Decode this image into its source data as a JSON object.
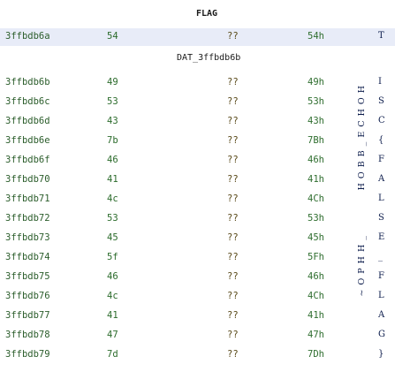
{
  "labels": {
    "flag": "FLAG",
    "dat": "DAT_3ffbdb6b"
  },
  "flag_row": {
    "addr": "3ffbdb6a",
    "byte": "54",
    "undef": "??",
    "hex": "54h",
    "char": "T"
  },
  "rows": [
    {
      "addr": "3ffbdb6b",
      "byte": "49",
      "undef": "??",
      "hex": "49h",
      "char": "I"
    },
    {
      "addr": "3ffbdb6c",
      "byte": "53",
      "undef": "??",
      "hex": "53h",
      "char": "S"
    },
    {
      "addr": "3ffbdb6d",
      "byte": "43",
      "undef": "??",
      "hex": "43h",
      "char": "C"
    },
    {
      "addr": "3ffbdb6e",
      "byte": "7b",
      "undef": "??",
      "hex": "7Bh",
      "char": "{"
    },
    {
      "addr": "3ffbdb6f",
      "byte": "46",
      "undef": "??",
      "hex": "46h",
      "char": "F"
    },
    {
      "addr": "3ffbdb70",
      "byte": "41",
      "undef": "??",
      "hex": "41h",
      "char": "A"
    },
    {
      "addr": "3ffbdb71",
      "byte": "4c",
      "undef": "??",
      "hex": "4Ch",
      "char": "L"
    },
    {
      "addr": "3ffbdb72",
      "byte": "53",
      "undef": "??",
      "hex": "53h",
      "char": "S"
    },
    {
      "addr": "3ffbdb73",
      "byte": "45",
      "undef": "??",
      "hex": "45h",
      "char": "E"
    },
    {
      "addr": "3ffbdb74",
      "byte": "5f",
      "undef": "??",
      "hex": "5Fh",
      "char": "_"
    },
    {
      "addr": "3ffbdb75",
      "byte": "46",
      "undef": "??",
      "hex": "46h",
      "char": "F"
    },
    {
      "addr": "3ffbdb76",
      "byte": "4c",
      "undef": "??",
      "hex": "4Ch",
      "char": "L"
    },
    {
      "addr": "3ffbdb77",
      "byte": "41",
      "undef": "??",
      "hex": "41h",
      "char": "A"
    },
    {
      "addr": "3ffbdb78",
      "byte": "47",
      "undef": "??",
      "hex": "47h",
      "char": "G"
    },
    {
      "addr": "3ffbdb79",
      "byte": "7d",
      "undef": "??",
      "hex": "7Dh",
      "char": "}"
    }
  ],
  "vertical_strings": [
    "HOBB_ECHOH",
    "~OPHH_"
  ]
}
